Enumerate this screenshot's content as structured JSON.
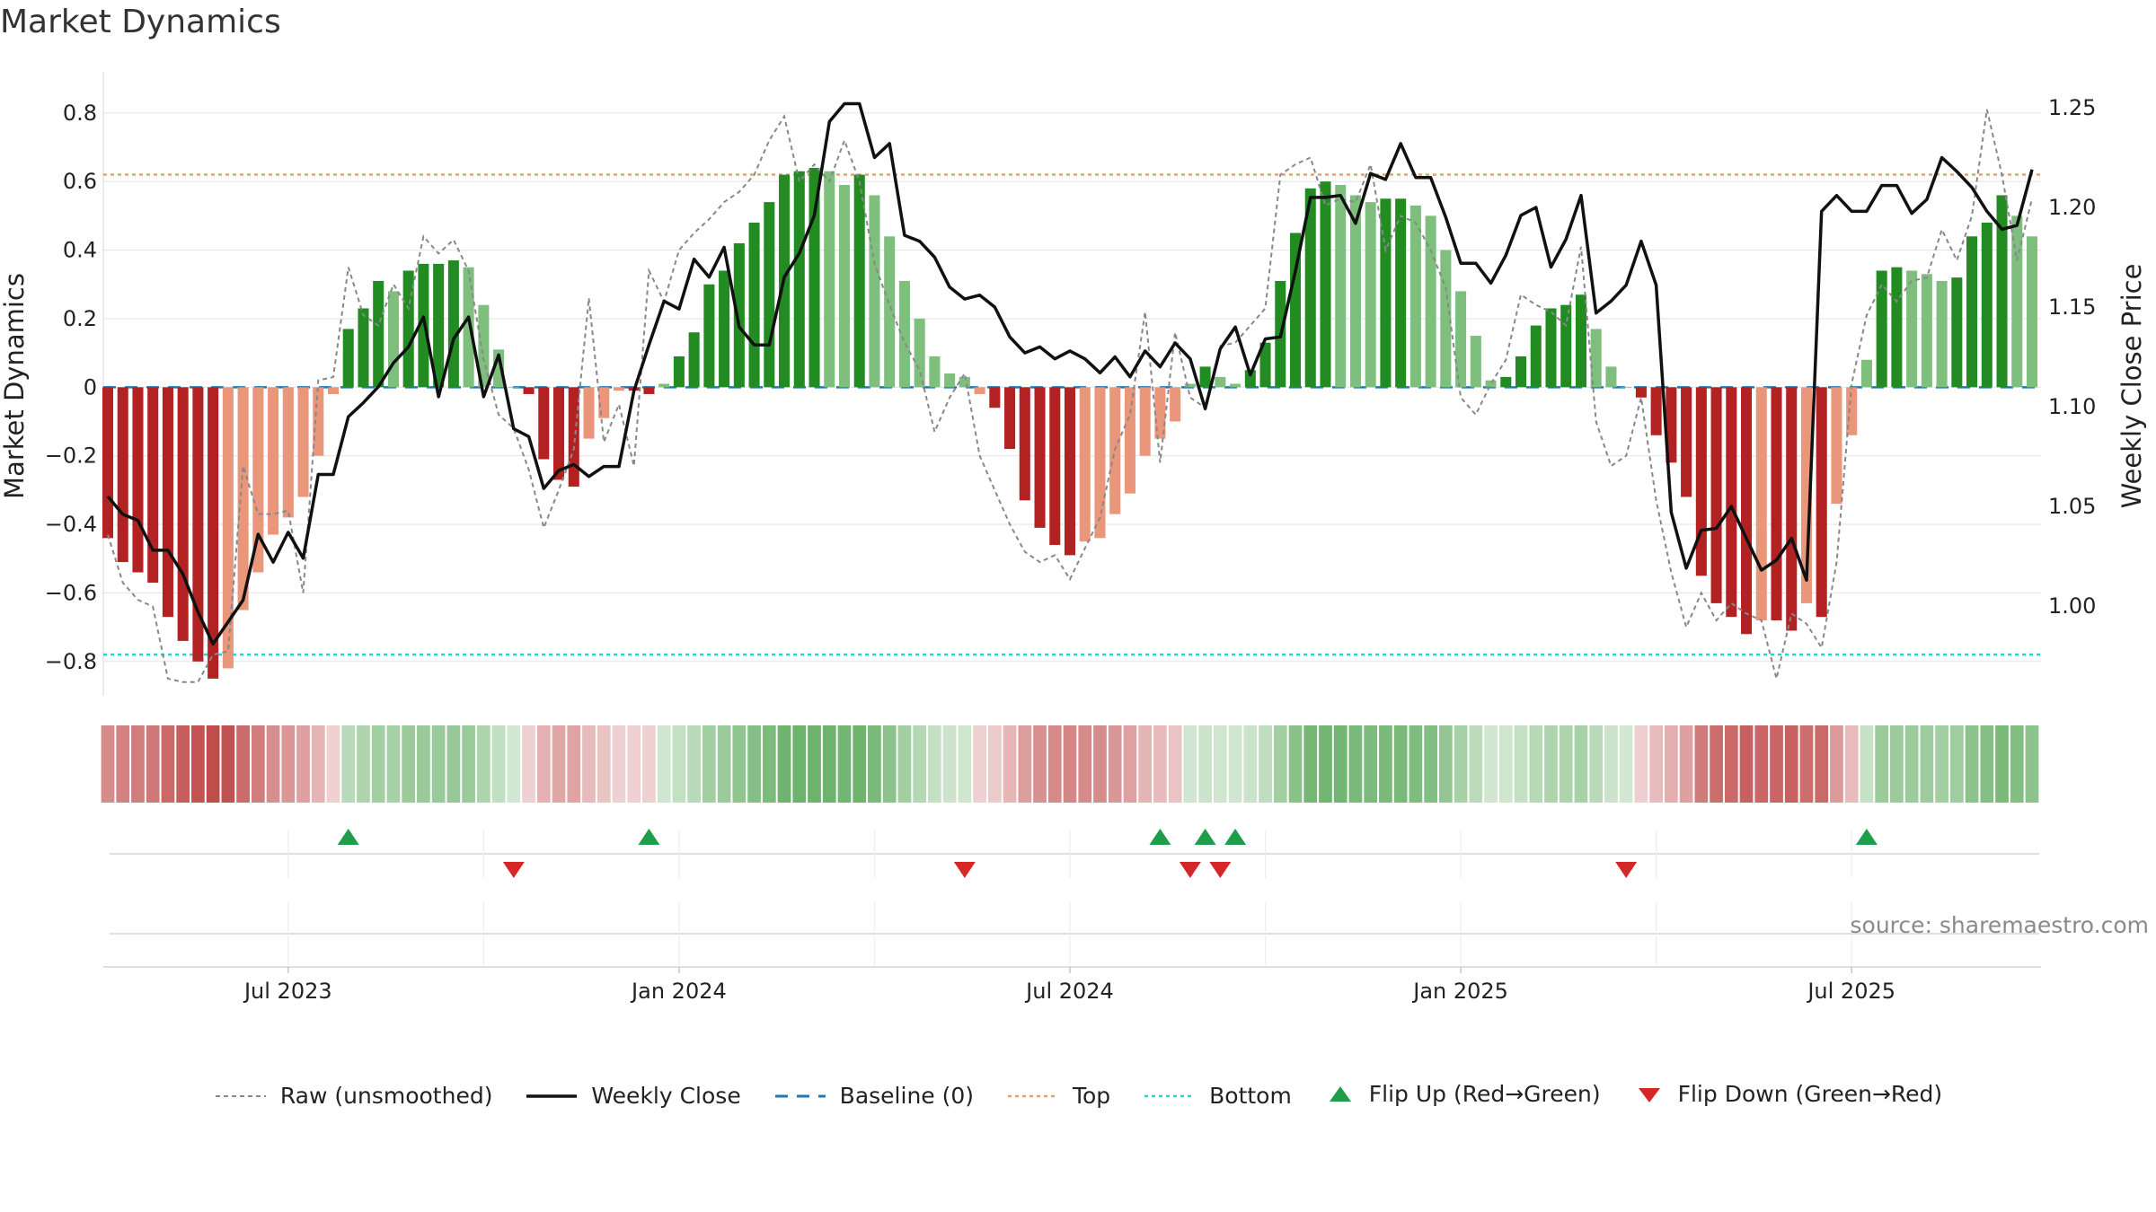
{
  "title": "Market Dynamics",
  "source": "source: sharemaestro.com",
  "chart_data": {
    "type": "bar",
    "title": "Market Dynamics",
    "ylabel": "Market Dynamics",
    "y2label": "Weekly Close Price",
    "ylim": [
      -0.9,
      0.92
    ],
    "y2lim": [
      0.955,
      1.268
    ],
    "yticks": [
      "0.8",
      "0.6",
      "0.4",
      "0.2",
      "0",
      "−0.2",
      "−0.4",
      "−0.6",
      "−0.8"
    ],
    "ytick_values": [
      0.8,
      0.6,
      0.4,
      0.2,
      0,
      -0.2,
      -0.4,
      -0.6,
      -0.8
    ],
    "y2ticks": [
      "1.25",
      "1.20",
      "1.15",
      "1.10",
      "1.05",
      "1.00"
    ],
    "y2tick_values": [
      1.25,
      1.2,
      1.15,
      1.1,
      1.05,
      1.0
    ],
    "xticks": [
      "Jul 2023",
      "Jan 2024",
      "Jul 2024",
      "Jan 2025",
      "Jul 2025"
    ],
    "xtick_weeks": [
      12,
      38,
      64,
      90,
      116
    ],
    "top_line": 0.62,
    "bottom_line": -0.78,
    "baseline": 0,
    "dynamics": [
      -0.44,
      -0.51,
      -0.54,
      -0.57,
      -0.67,
      -0.74,
      -0.8,
      -0.85,
      -0.82,
      -0.65,
      -0.54,
      -0.43,
      -0.38,
      -0.32,
      -0.2,
      -0.02,
      0.17,
      0.23,
      0.31,
      0.28,
      0.34,
      0.36,
      0.36,
      0.37,
      0.35,
      0.24,
      0.11,
      0,
      -0.02,
      -0.21,
      -0.27,
      -0.29,
      -0.15,
      -0.09,
      -0.01,
      -0.01,
      -0.02,
      0.01,
      0.09,
      0.16,
      0.3,
      0.34,
      0.42,
      0.48,
      0.54,
      0.62,
      0.63,
      0.64,
      0.63,
      0.59,
      0.62,
      0.56,
      0.44,
      0.31,
      0.2,
      0.09,
      0.04,
      0.03,
      -0.02,
      -0.06,
      -0.18,
      -0.33,
      -0.41,
      -0.46,
      -0.49,
      -0.45,
      -0.44,
      -0.37,
      -0.31,
      -0.2,
      -0.15,
      -0.1,
      0.01,
      0.06,
      0.03,
      0.01,
      0.05,
      0.13,
      0.31,
      0.45,
      0.58,
      0.6,
      0.59,
      0.56,
      0.54,
      0.55,
      0.55,
      0.53,
      0.5,
      0.4,
      0.28,
      0.15,
      0.02,
      0.03,
      0.09,
      0.18,
      0.23,
      0.24,
      0.27,
      0.17,
      0.06,
      0,
      -0.03,
      -0.14,
      -0.22,
      -0.32,
      -0.55,
      -0.63,
      -0.67,
      -0.72,
      -0.68,
      -0.68,
      -0.71,
      -0.63,
      -0.67,
      -0.34,
      -0.14,
      0.08,
      0.34,
      0.35,
      0.34,
      0.33,
      0.31,
      0.32,
      0.44,
      0.48,
      0.56,
      0.5,
      0.44
    ],
    "raw": [
      -0.43,
      -0.57,
      -0.62,
      -0.64,
      -0.85,
      -0.86,
      -0.86,
      -0.78,
      -0.77,
      -0.23,
      -0.37,
      -0.37,
      -0.36,
      -0.6,
      0.02,
      0.03,
      0.35,
      0.21,
      0.18,
      0.3,
      0.23,
      0.44,
      0.39,
      0.43,
      0.34,
      0.08,
      -0.08,
      -0.12,
      -0.24,
      -0.41,
      -0.3,
      -0.18,
      0.26,
      -0.16,
      -0.05,
      -0.23,
      0.34,
      0.25,
      0.4,
      0.45,
      0.49,
      0.54,
      0.57,
      0.62,
      0.72,
      0.79,
      0.6,
      0.65,
      0.6,
      0.72,
      0.6,
      0.36,
      0.24,
      0.13,
      0.05,
      -0.13,
      -0.03,
      0.04,
      -0.2,
      -0.3,
      -0.4,
      -0.48,
      -0.51,
      -0.49,
      -0.56,
      -0.47,
      -0.38,
      -0.18,
      -0.08,
      0.22,
      -0.22,
      0.16,
      -0.03,
      -0.06,
      0.12,
      0.13,
      0.18,
      0.23,
      0.62,
      0.65,
      0.67,
      0.53,
      0.55,
      0.54,
      0.65,
      0.4,
      0.5,
      0.48,
      0.4,
      0.29,
      -0.03,
      -0.08,
      0.01,
      0.08,
      0.27,
      0.24,
      0.22,
      0.18,
      0.41,
      -0.1,
      -0.23,
      -0.2,
      -0.03,
      -0.33,
      -0.54,
      -0.7,
      -0.6,
      -0.68,
      -0.63,
      -0.66,
      -0.68,
      -0.85,
      -0.66,
      -0.69,
      -0.76,
      -0.51,
      0.01,
      0.21,
      0.3,
      0.25,
      0.31,
      0.32,
      0.46,
      0.37,
      0.5,
      0.81,
      0.62,
      0.37,
      0.55
    ],
    "close": [
      1.055,
      1.046,
      1.043,
      1.028,
      1.028,
      1.016,
      0.997,
      0.981,
      0.992,
      1.003,
      1.036,
      1.022,
      1.037,
      1.024,
      1.066,
      1.066,
      1.095,
      1.102,
      1.11,
      1.122,
      1.13,
      1.145,
      1.105,
      1.134,
      1.145,
      1.105,
      1.126,
      1.089,
      1.085,
      1.059,
      1.068,
      1.071,
      1.065,
      1.07,
      1.07,
      1.108,
      1.131,
      1.153,
      1.149,
      1.174,
      1.165,
      1.18,
      1.14,
      1.131,
      1.131,
      1.165,
      1.177,
      1.196,
      1.243,
      1.252,
      1.252,
      1.225,
      1.232,
      1.186,
      1.183,
      1.175,
      1.16,
      1.154,
      1.156,
      1.15,
      1.135,
      1.127,
      1.13,
      1.124,
      1.128,
      1.124,
      1.117,
      1.125,
      1.115,
      1.128,
      1.12,
      1.132,
      1.124,
      1.099,
      1.129,
      1.14,
      1.116,
      1.134,
      1.135,
      1.168,
      1.205,
      1.205,
      1.206,
      1.192,
      1.217,
      1.214,
      1.232,
      1.215,
      1.215,
      1.195,
      1.172,
      1.172,
      1.162,
      1.176,
      1.196,
      1.2,
      1.17,
      1.184,
      1.206,
      1.147,
      1.153,
      1.161,
      1.183,
      1.161,
      1.047,
      1.019,
      1.038,
      1.039,
      1.05,
      1.034,
      1.018,
      1.023,
      1.034,
      1.013,
      1.198,
      1.206,
      1.198,
      1.198,
      1.211,
      1.211,
      1.197,
      1.204,
      1.225,
      1.218,
      1.21,
      1.198,
      1.189,
      1.191,
      1.219
    ],
    "flip_up_weeks": [
      16,
      36,
      70,
      73,
      75,
      117
    ],
    "flip_down_weeks": [
      27,
      57,
      72,
      74,
      101
    ],
    "legend": [
      "Raw (unsmoothed)",
      "Weekly Close",
      "Baseline (0)",
      "Top",
      "Bottom",
      "Flip Up (Red→Green)",
      "Flip Down (Green→Red)"
    ],
    "colors": {
      "dark_red": "#b22222",
      "light_red": "#e9967a",
      "dark_green": "#228b22",
      "light_green": "#7ebf7e",
      "close_line": "#111111",
      "raw_line": "#888888",
      "baseline": "#1f77b4",
      "top": "#e9a070",
      "bottom": "#33cccc",
      "flip_up": "#1e9e4a",
      "flip_down": "#d62728"
    }
  }
}
